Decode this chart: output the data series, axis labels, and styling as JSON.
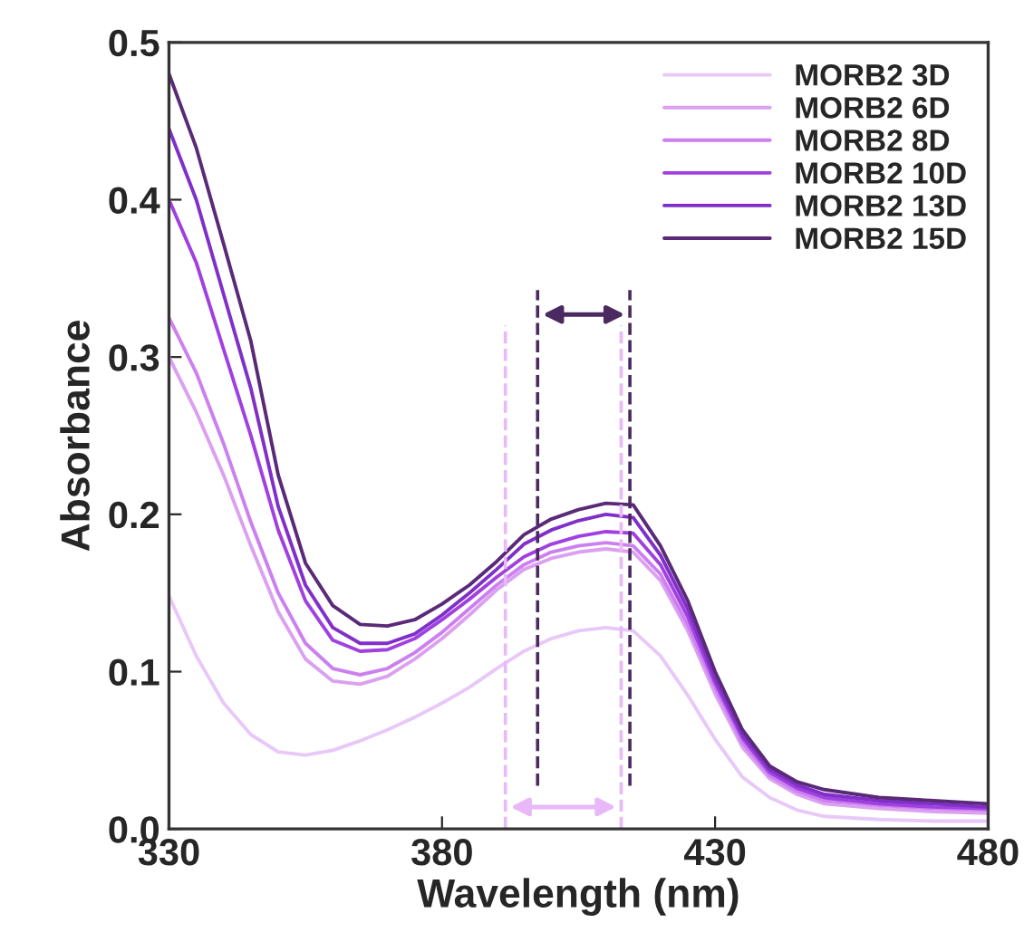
{
  "chart_data": {
    "type": "line",
    "xlabel": "Wavelength (nm)",
    "ylabel": "Absorbance",
    "x": [
      330,
      335,
      340,
      345,
      350,
      355,
      360,
      365,
      370,
      375,
      380,
      385,
      390,
      395,
      400,
      405,
      410,
      415,
      420,
      425,
      430,
      435,
      440,
      445,
      450,
      460,
      470,
      480
    ],
    "series": [
      {
        "name": "MORB2 3D",
        "color": "#e8c8f8",
        "values": [
          0.148,
          0.11,
          0.08,
          0.06,
          0.049,
          0.047,
          0.05,
          0.056,
          0.063,
          0.071,
          0.08,
          0.09,
          0.102,
          0.113,
          0.121,
          0.126,
          0.128,
          0.126,
          0.11,
          0.085,
          0.057,
          0.033,
          0.02,
          0.012,
          0.008,
          0.006,
          0.005,
          0.005
        ]
      },
      {
        "name": "MORB2 6D",
        "color": "#dca0f0",
        "values": [
          0.3,
          0.265,
          0.225,
          0.18,
          0.138,
          0.108,
          0.094,
          0.092,
          0.097,
          0.108,
          0.121,
          0.136,
          0.152,
          0.165,
          0.172,
          0.176,
          0.178,
          0.176,
          0.158,
          0.126,
          0.086,
          0.052,
          0.032,
          0.022,
          0.016,
          0.013,
          0.011,
          0.01
        ]
      },
      {
        "name": "MORB2 8D",
        "color": "#cc80f0",
        "values": [
          0.325,
          0.29,
          0.245,
          0.195,
          0.15,
          0.118,
          0.102,
          0.098,
          0.102,
          0.112,
          0.125,
          0.14,
          0.155,
          0.168,
          0.176,
          0.18,
          0.182,
          0.18,
          0.162,
          0.13,
          0.09,
          0.055,
          0.034,
          0.024,
          0.018,
          0.015,
          0.013,
          0.012
        ]
      },
      {
        "name": "MORB2 10D",
        "color": "#a040e0",
        "values": [
          0.4,
          0.36,
          0.305,
          0.25,
          0.19,
          0.145,
          0.12,
          0.113,
          0.114,
          0.121,
          0.133,
          0.146,
          0.16,
          0.173,
          0.181,
          0.186,
          0.189,
          0.188,
          0.168,
          0.135,
          0.093,
          0.058,
          0.036,
          0.026,
          0.02,
          0.016,
          0.014,
          0.013
        ]
      },
      {
        "name": "MORB2 13D",
        "color": "#8030c8",
        "values": [
          0.445,
          0.4,
          0.34,
          0.28,
          0.205,
          0.155,
          0.128,
          0.118,
          0.118,
          0.124,
          0.136,
          0.15,
          0.165,
          0.181,
          0.19,
          0.196,
          0.2,
          0.198,
          0.174,
          0.14,
          0.096,
          0.06,
          0.038,
          0.028,
          0.022,
          0.018,
          0.016,
          0.014
        ]
      },
      {
        "name": "MORB2 15D",
        "color": "#5a2a78",
        "values": [
          0.48,
          0.433,
          0.372,
          0.31,
          0.225,
          0.169,
          0.142,
          0.13,
          0.129,
          0.133,
          0.143,
          0.155,
          0.17,
          0.187,
          0.197,
          0.203,
          0.207,
          0.206,
          0.18,
          0.145,
          0.1,
          0.063,
          0.04,
          0.03,
          0.025,
          0.02,
          0.018,
          0.016
        ]
      }
    ],
    "xlim": [
      330,
      480
    ],
    "xticks": [
      330,
      380,
      430,
      480
    ],
    "ylim": [
      0,
      0.5
    ],
    "yticks": [
      {
        "value": 0,
        "label": "0.0"
      },
      0.1,
      0.2,
      0.3,
      0.4,
      0.5
    ],
    "ref_lines": [
      {
        "axis": "x",
        "value": 391.6,
        "label": null,
        "color": "#e8b8f8",
        "line_style": "dashed"
      },
      {
        "axis": "x",
        "value": 412.8,
        "label": null,
        "color": "#e8b8f8",
        "line_style": "dashed"
      },
      {
        "axis": "x",
        "value": 397.5,
        "label": null,
        "color": "#4a2a60",
        "line_style": "dashed"
      },
      {
        "axis": "x",
        "value": 414.4,
        "label": null,
        "color": "#4a2a60",
        "line_style": "dashed"
      }
    ],
    "legend": "top right",
    "grid": false,
    "marker": "none",
    "line_style": "solid"
  }
}
